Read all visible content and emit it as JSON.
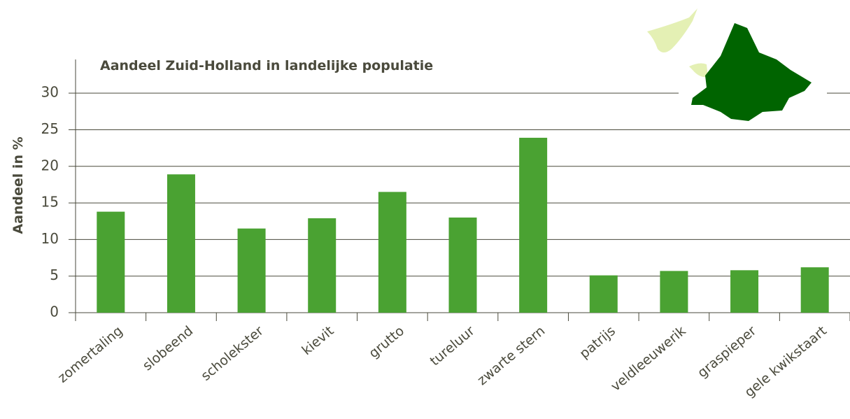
{
  "chart_data": {
    "type": "bar",
    "title": "Aandeel Zuid-Holland in landelijke populatie",
    "y_label": "Aandeel in %",
    "categories": [
      "zomertaling",
      "slobeend",
      "scholekster",
      "kievit",
      "grutto",
      "tureluur",
      "zwarte stern",
      "patrijs",
      "veldleeuwerik",
      "graspieper",
      "gele kwikstaart"
    ],
    "values": [
      13.8,
      18.9,
      11.5,
      12.9,
      16.5,
      13.0,
      23.9,
      5.1,
      5.7,
      5.8,
      6.2
    ],
    "color": "#4aa232",
    "ylim": [
      0,
      34.6
    ],
    "yticks": [
      0,
      5,
      10,
      15,
      20,
      25,
      30
    ],
    "grid": true
  }
}
